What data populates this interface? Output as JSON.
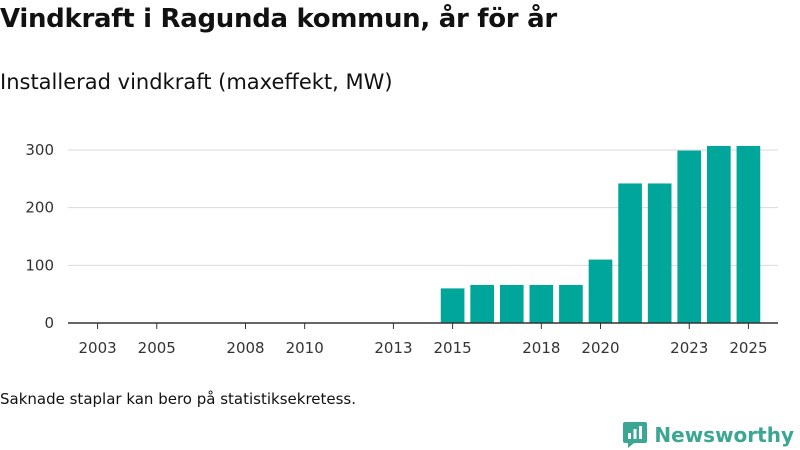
{
  "header": {
    "title": "Vindkraft i Ragunda kommun, år för år",
    "subtitle": "Installerad vindkraft (maxeffekt, MW)"
  },
  "footer": {
    "note": "Saknade staplar kan bero på statistiksekretess.",
    "brand": "Newsworthy"
  },
  "colors": {
    "bar": "#00a69a",
    "grid": "#d9d9d9",
    "axis": "#333333",
    "brand": "#3aa693"
  },
  "chart_data": {
    "type": "bar",
    "title": "Vindkraft i Ragunda kommun, år för år",
    "ylabel": "Installerad vindkraft (maxeffekt, MW)",
    "xlabel": "",
    "ylim": [
      0,
      300
    ],
    "yticks": [
      0,
      100,
      200,
      300
    ],
    "xlim": [
      2002,
      2026
    ],
    "xticks": [
      2003,
      2005,
      2008,
      2010,
      2013,
      2015,
      2018,
      2020,
      2023,
      2025
    ],
    "grid": "horizontal",
    "legend": "none",
    "categories": [
      2015,
      2016,
      2017,
      2018,
      2019,
      2020,
      2021,
      2022,
      2023,
      2024,
      2025
    ],
    "values": [
      60,
      66,
      66,
      66,
      66,
      110,
      242,
      242,
      299,
      307,
      307
    ]
  }
}
